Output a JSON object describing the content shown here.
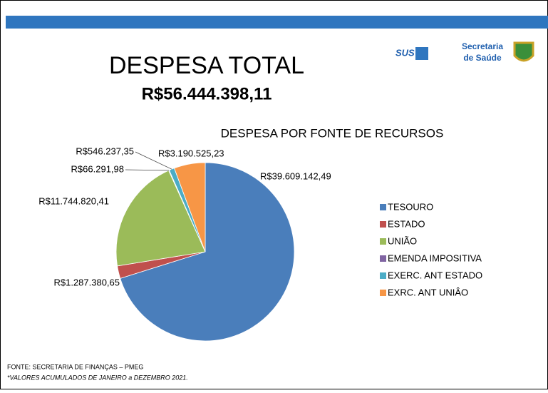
{
  "header": {
    "title": "DESPESA TOTAL",
    "total": "R$56.444.398,11",
    "logo": {
      "sus": "SUS",
      "line1": "Secretaria",
      "line2": "de Saúde"
    }
  },
  "chart_data": {
    "type": "pie",
    "title": "DESPESA POR FONTE DE RECURSOS",
    "categories": [
      "TESOURO",
      "ESTADO",
      "UNIÃO",
      "EMENDA IMPOSITIVA",
      "EXERC. ANT ESTADO",
      "EXRC. ANT UNIÂO"
    ],
    "values": [
      39609142.49,
      1287380.65,
      11744820.41,
      66291.98,
      546237.35,
      3190525.23
    ],
    "value_labels": [
      "R$39.609.142,49",
      "R$1.287.380,65",
      "R$11.744.820,41",
      "R$66.291,98",
      "R$546.237,35",
      "R$3.190.525,23"
    ],
    "colors": [
      "#4a7ebb",
      "#c0504d",
      "#9bbb59",
      "#8064a2",
      "#4bacc6",
      "#f79646"
    ],
    "legend": "right"
  },
  "footer": {
    "source": "FONTE: SECRETARIA DE FINANÇAS – PMEG",
    "note": "*VALORES ACUMULADOS DE JANEIRO a DEZEMBRO 2021."
  }
}
